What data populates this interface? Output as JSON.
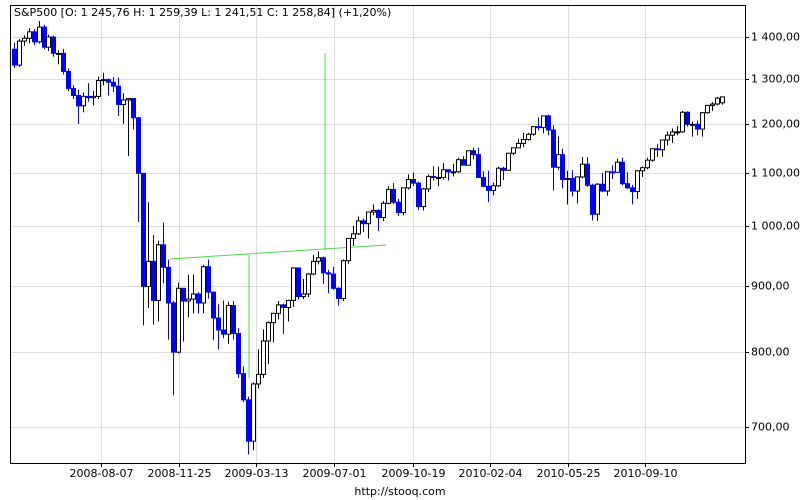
{
  "chart_data": {
    "type": "candlestick",
    "title": "S&P500 [O: 1 245,76  H: 1 259,39  L: 1 241,51  C: 1 258,84] (+1,20%)",
    "footer": "http://stooq.com",
    "log_scale": true,
    "grid": true,
    "up_color": "#ffffff",
    "down_color": "#0000ff",
    "xlim": [
      "2008-04-02",
      "2011-01-28"
    ],
    "xticks": [
      "2008-08-07",
      "2008-11-25",
      "2009-03-13",
      "2009-07-01",
      "2009-10-19",
      "2010-02-04",
      "2010-05-25",
      "2010-09-10"
    ],
    "ylim": [
      657,
      1482
    ],
    "yticks": [
      {
        "value": 700,
        "label": "700,00"
      },
      {
        "value": 800,
        "label": "800,00"
      },
      {
        "value": 900,
        "label": "900,00"
      },
      {
        "value": 1000,
        "label": "1 000,00"
      },
      {
        "value": 1100,
        "label": "1 100,00"
      },
      {
        "value": 1200,
        "label": "1 200,00"
      },
      {
        "value": 1300,
        "label": "1 300,00"
      },
      {
        "value": 1400,
        "label": "1 400,00"
      }
    ],
    "x": [
      "2008-04-07",
      "2008-04-14",
      "2008-04-21",
      "2008-04-28",
      "2008-05-05",
      "2008-05-12",
      "2008-05-19",
      "2008-05-26",
      "2008-06-02",
      "2008-06-09",
      "2008-06-16",
      "2008-06-23",
      "2008-06-30",
      "2008-07-07",
      "2008-07-14",
      "2008-07-21",
      "2008-07-28",
      "2008-08-04",
      "2008-08-11",
      "2008-08-18",
      "2008-08-25",
      "2008-09-01",
      "2008-09-08",
      "2008-09-15",
      "2008-09-22",
      "2008-09-29",
      "2008-10-06",
      "2008-10-13",
      "2008-10-20",
      "2008-10-27",
      "2008-11-03",
      "2008-11-10",
      "2008-11-17",
      "2008-11-24",
      "2008-12-01",
      "2008-12-08",
      "2008-12-15",
      "2008-12-22",
      "2008-12-29",
      "2009-01-05",
      "2009-01-12",
      "2009-01-19",
      "2009-01-26",
      "2009-02-02",
      "2009-02-09",
      "2009-02-16",
      "2009-02-23",
      "2009-03-02",
      "2009-03-09",
      "2009-03-16",
      "2009-03-23",
      "2009-03-30",
      "2009-04-06",
      "2009-04-13",
      "2009-04-20",
      "2009-04-27",
      "2009-05-04",
      "2009-05-11",
      "2009-05-18",
      "2009-05-25",
      "2009-06-01",
      "2009-06-08",
      "2009-06-15",
      "2009-06-22",
      "2009-06-29",
      "2009-07-06",
      "2009-07-13",
      "2009-07-20",
      "2009-07-27",
      "2009-08-03",
      "2009-08-10",
      "2009-08-17",
      "2009-08-24",
      "2009-08-31",
      "2009-09-07",
      "2009-09-14",
      "2009-09-21",
      "2009-09-28",
      "2009-10-05",
      "2009-10-12",
      "2009-10-19",
      "2009-10-26",
      "2009-11-02",
      "2009-11-09",
      "2009-11-16",
      "2009-11-23",
      "2009-11-30",
      "2009-12-07",
      "2009-12-14",
      "2009-12-21",
      "2009-12-28",
      "2010-01-04",
      "2010-01-11",
      "2010-01-18",
      "2010-01-25",
      "2010-02-01",
      "2010-02-08",
      "2010-02-15",
      "2010-02-22",
      "2010-03-01",
      "2010-03-08",
      "2010-03-15",
      "2010-03-22",
      "2010-03-29",
      "2010-04-05",
      "2010-04-12",
      "2010-04-19",
      "2010-04-26",
      "2010-05-03",
      "2010-05-10",
      "2010-05-17",
      "2010-05-24",
      "2010-05-31",
      "2010-06-07",
      "2010-06-14",
      "2010-06-21",
      "2010-06-28",
      "2010-07-05",
      "2010-07-12",
      "2010-07-19",
      "2010-07-26",
      "2010-08-02",
      "2010-08-09",
      "2010-08-16",
      "2010-08-23",
      "2010-08-30",
      "2010-09-06",
      "2010-09-13",
      "2010-09-20",
      "2010-09-27",
      "2010-10-04",
      "2010-10-11",
      "2010-10-18",
      "2010-10-25",
      "2010-11-01",
      "2010-11-08",
      "2010-11-15",
      "2010-11-22",
      "2010-11-29",
      "2010-12-06",
      "2010-12-13",
      "2010-12-20",
      "2010-12-27"
    ],
    "candles": [
      [
        1370,
        1386,
        1325,
        1332
      ],
      [
        1332,
        1395,
        1328,
        1390
      ],
      [
        1390,
        1404,
        1378,
        1397
      ],
      [
        1397,
        1422,
        1385,
        1413
      ],
      [
        1413,
        1420,
        1380,
        1388
      ],
      [
        1388,
        1440,
        1384,
        1425
      ],
      [
        1425,
        1431,
        1370,
        1375
      ],
      [
        1375,
        1406,
        1366,
        1400
      ],
      [
        1400,
        1404,
        1352,
        1360
      ],
      [
        1360,
        1368,
        1334,
        1360
      ],
      [
        1360,
        1371,
        1310,
        1317
      ],
      [
        1317,
        1324,
        1272,
        1278
      ],
      [
        1278,
        1285,
        1254,
        1262
      ],
      [
        1262,
        1275,
        1200,
        1239
      ],
      [
        1239,
        1268,
        1225,
        1260
      ],
      [
        1260,
        1290,
        1248,
        1257
      ],
      [
        1257,
        1272,
        1240,
        1260
      ],
      [
        1260,
        1305,
        1254,
        1296
      ],
      [
        1296,
        1314,
        1285,
        1298
      ],
      [
        1298,
        1301,
        1262,
        1292
      ],
      [
        1292,
        1304,
        1270,
        1283
      ],
      [
        1283,
        1303,
        1217,
        1242
      ],
      [
        1242,
        1267,
        1200,
        1252
      ],
      [
        1252,
        1256,
        1133,
        1255
      ],
      [
        1255,
        1255,
        1188,
        1213
      ],
      [
        1213,
        1215,
        1008,
        1099
      ],
      [
        1099,
        1099,
        839,
        899
      ],
      [
        899,
        1044,
        865,
        940
      ],
      [
        940,
        985,
        840,
        877
      ],
      [
        877,
        975,
        845,
        968
      ],
      [
        968,
        1007,
        904,
        930
      ],
      [
        930,
        943,
        818,
        873
      ],
      [
        873,
        876,
        741,
        800
      ],
      [
        800,
        905,
        798,
        896
      ],
      [
        896,
        896,
        815,
        876
      ],
      [
        876,
        918,
        851,
        879
      ],
      [
        879,
        918,
        857,
        887
      ],
      [
        887,
        890,
        857,
        873
      ],
      [
        873,
        934,
        857,
        931
      ],
      [
        931,
        943,
        880,
        890
      ],
      [
        890,
        890,
        817,
        850
      ],
      [
        850,
        871,
        804,
        832
      ],
      [
        832,
        877,
        820,
        826
      ],
      [
        826,
        875,
        812,
        869
      ],
      [
        869,
        876,
        818,
        827
      ],
      [
        827,
        835,
        764,
        770
      ],
      [
        770,
        780,
        732,
        735
      ],
      [
        735,
        739,
        667,
        683
      ],
      [
        683,
        758,
        672,
        756
      ],
      [
        756,
        804,
        750,
        769
      ],
      [
        769,
        833,
        764,
        816
      ],
      [
        816,
        845,
        783,
        843
      ],
      [
        843,
        858,
        814,
        857
      ],
      [
        857,
        876,
        848,
        870
      ],
      [
        870,
        872,
        826,
        866
      ],
      [
        866,
        878,
        845,
        877
      ],
      [
        877,
        930,
        867,
        929
      ],
      [
        929,
        930,
        878,
        883
      ],
      [
        883,
        911,
        879,
        887
      ],
      [
        887,
        921,
        882,
        919
      ],
      [
        919,
        951,
        917,
        940
      ],
      [
        940,
        957,
        935,
        946
      ],
      [
        946,
        948,
        903,
        921
      ],
      [
        921,
        926,
        888,
        919
      ],
      [
        919,
        931,
        894,
        896
      ],
      [
        896,
        898,
        869,
        880
      ],
      [
        880,
        943,
        876,
        941
      ],
      [
        941,
        979,
        936,
        979
      ],
      [
        979,
        1001,
        966,
        987
      ],
      [
        987,
        1018,
        985,
        1010
      ],
      [
        1010,
        1014,
        990,
        1005
      ],
      [
        1005,
        1027,
        979,
        1026
      ],
      [
        1026,
        1040,
        1020,
        1029
      ],
      [
        1029,
        1031,
        992,
        1016
      ],
      [
        1016,
        1046,
        1010,
        1042
      ],
      [
        1042,
        1074,
        1040,
        1068
      ],
      [
        1068,
        1080,
        1041,
        1044
      ],
      [
        1044,
        1050,
        1019,
        1025
      ],
      [
        1025,
        1071,
        1020,
        1071
      ],
      [
        1071,
        1097,
        1068,
        1087
      ],
      [
        1087,
        1101,
        1075,
        1080
      ],
      [
        1080,
        1083,
        1030,
        1036
      ],
      [
        1036,
        1071,
        1029,
        1069
      ],
      [
        1069,
        1097,
        1063,
        1093
      ],
      [
        1093,
        1113,
        1085,
        1091
      ],
      [
        1091,
        1112,
        1074,
        1091
      ],
      [
        1091,
        1119,
        1087,
        1106
      ],
      [
        1106,
        1107,
        1085,
        1102
      ],
      [
        1102,
        1118,
        1093,
        1102
      ],
      [
        1102,
        1130,
        1100,
        1126
      ],
      [
        1126,
        1133,
        1115,
        1115
      ],
      [
        1115,
        1145,
        1114,
        1144
      ],
      [
        1144,
        1150,
        1127,
        1136
      ],
      [
        1136,
        1150,
        1090,
        1091
      ],
      [
        1091,
        1103,
        1072,
        1074
      ],
      [
        1074,
        1104,
        1044,
        1066
      ],
      [
        1066,
        1081,
        1057,
        1075
      ],
      [
        1075,
        1112,
        1073,
        1109
      ],
      [
        1109,
        1112,
        1086,
        1105
      ],
      [
        1105,
        1140,
        1104,
        1139
      ],
      [
        1139,
        1150,
        1135,
        1150
      ],
      [
        1150,
        1169,
        1149,
        1159
      ],
      [
        1159,
        1181,
        1151,
        1167
      ],
      [
        1167,
        1181,
        1165,
        1178
      ],
      [
        1178,
        1195,
        1175,
        1194
      ],
      [
        1194,
        1214,
        1186,
        1192
      ],
      [
        1192,
        1218,
        1180,
        1217
      ],
      [
        1217,
        1220,
        1176,
        1187
      ],
      [
        1187,
        1197,
        1066,
        1111
      ],
      [
        1111,
        1173,
        1106,
        1136
      ],
      [
        1136,
        1148,
        1070,
        1087
      ],
      [
        1087,
        1104,
        1040,
        1089
      ],
      [
        1089,
        1105,
        1055,
        1065
      ],
      [
        1065,
        1093,
        1042,
        1092
      ],
      [
        1092,
        1131,
        1089,
        1117
      ],
      [
        1117,
        1131,
        1073,
        1076
      ],
      [
        1076,
        1079,
        1011,
        1022
      ],
      [
        1022,
        1080,
        1010,
        1078
      ],
      [
        1078,
        1100,
        1063,
        1065
      ],
      [
        1065,
        1103,
        1056,
        1102
      ],
      [
        1102,
        1115,
        1088,
        1101
      ],
      [
        1101,
        1128,
        1101,
        1121
      ],
      [
        1121,
        1130,
        1076,
        1079
      ],
      [
        1079,
        1101,
        1069,
        1071
      ],
      [
        1071,
        1077,
        1040,
        1064
      ],
      [
        1064,
        1105,
        1050,
        1104
      ],
      [
        1104,
        1113,
        1092,
        1110
      ],
      [
        1110,
        1130,
        1107,
        1125
      ],
      [
        1125,
        1148,
        1122,
        1148
      ],
      [
        1148,
        1158,
        1131,
        1146
      ],
      [
        1146,
        1167,
        1132,
        1166
      ],
      [
        1166,
        1184,
        1155,
        1176
      ],
      [
        1176,
        1190,
        1160,
        1183
      ],
      [
        1183,
        1196,
        1176,
        1183
      ],
      [
        1183,
        1228,
        1181,
        1225
      ],
      [
        1225,
        1227,
        1194,
        1199
      ],
      [
        1199,
        1205,
        1173,
        1199
      ],
      [
        1199,
        1207,
        1176,
        1189
      ],
      [
        1189,
        1225,
        1173,
        1224
      ],
      [
        1224,
        1241,
        1222,
        1240
      ],
      [
        1240,
        1247,
        1228,
        1243
      ],
      [
        1243,
        1259,
        1240,
        1256
      ],
      [
        1245.76,
        1259.39,
        1241.51,
        1258.84
      ]
    ]
  }
}
